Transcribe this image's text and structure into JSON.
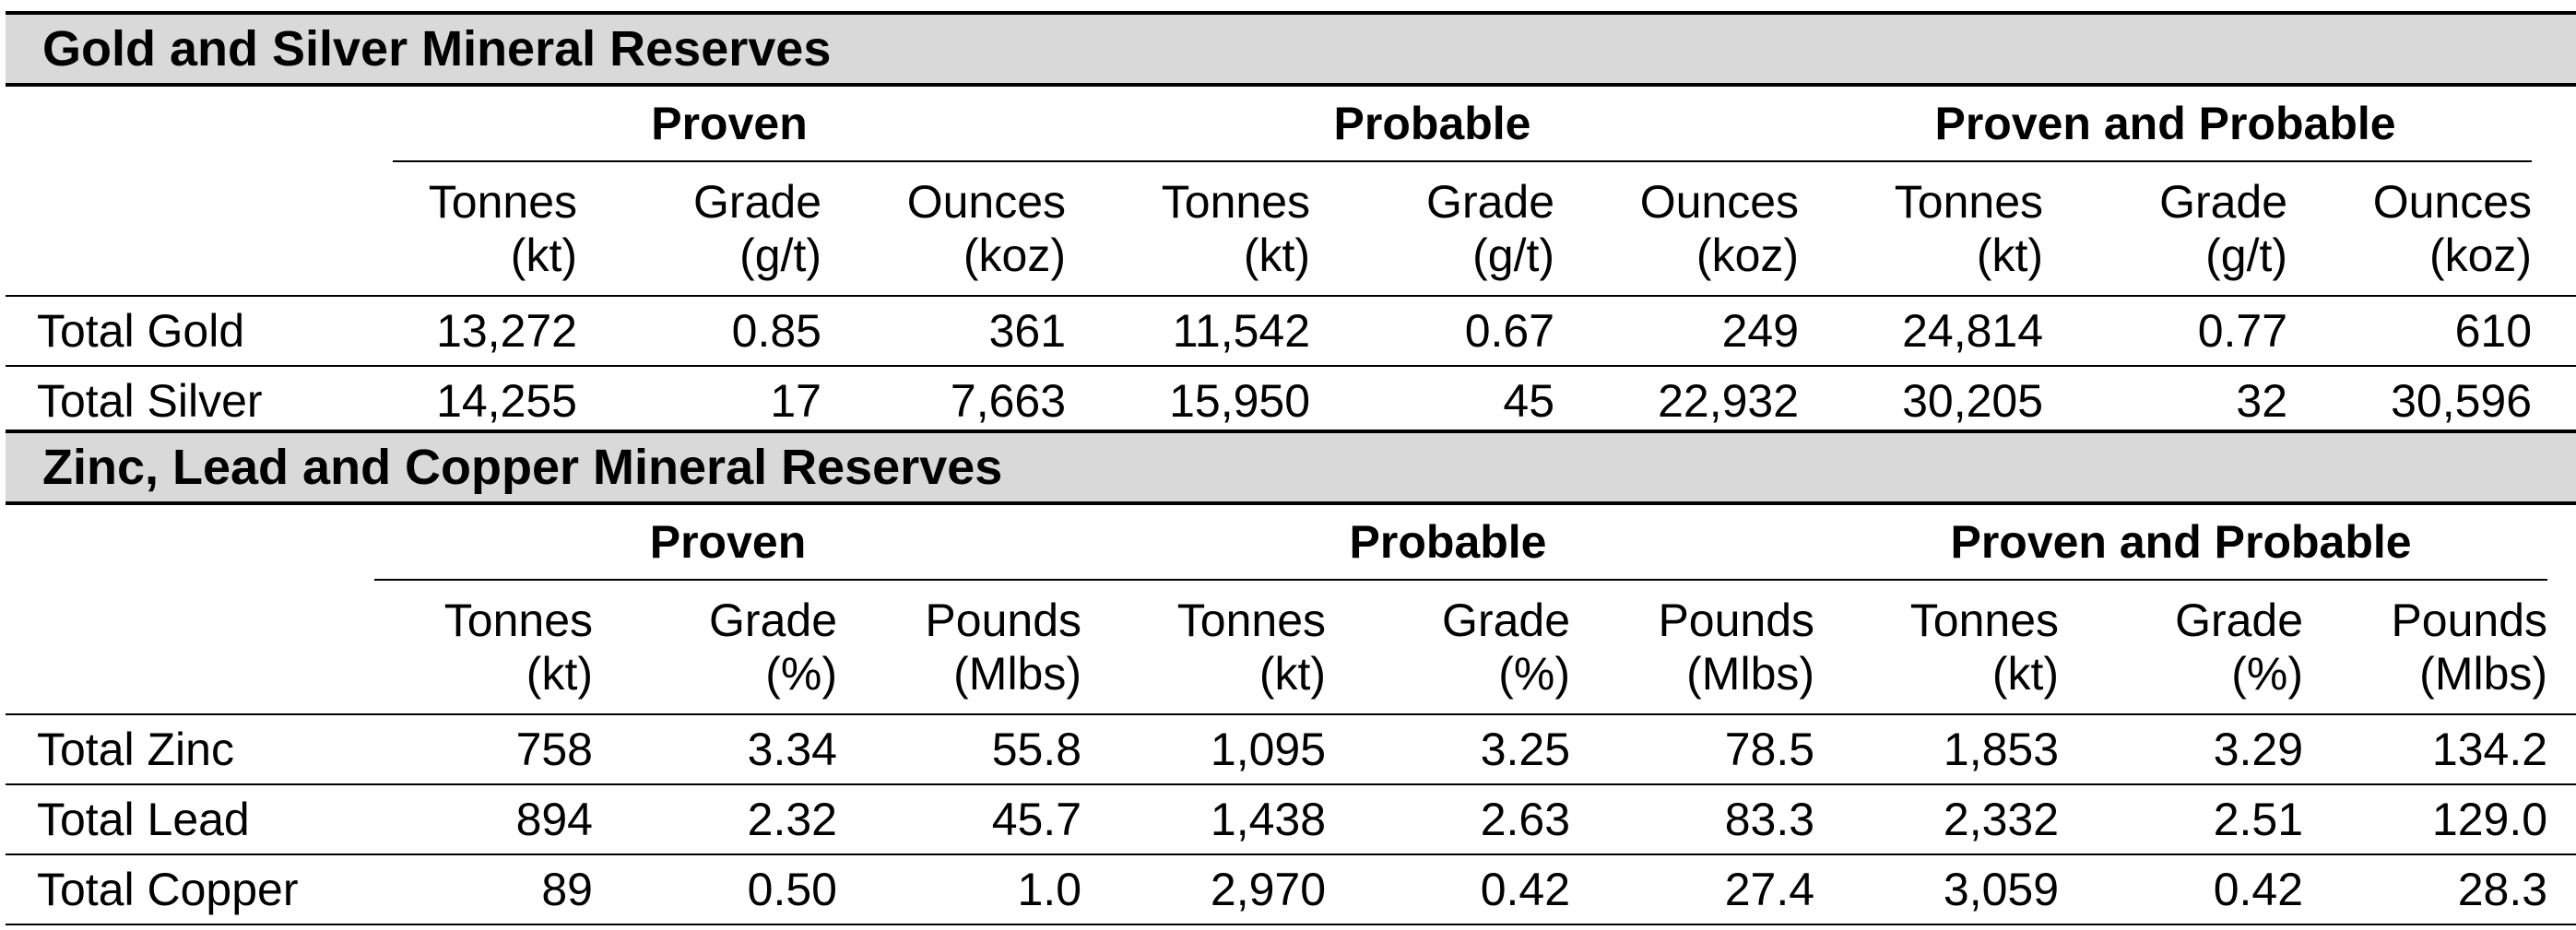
{
  "gold_silver": {
    "title": "Gold and Silver Mineral Reserves",
    "groups": [
      "Proven",
      "Probable",
      "Proven and Probable"
    ],
    "units_line1": [
      "Tonnes",
      "Grade",
      "Ounces",
      "Tonnes",
      "Grade",
      "Ounces",
      "Tonnes",
      "Grade",
      "Ounces"
    ],
    "units_line2": [
      "(kt)",
      "(g/t)",
      "(koz)",
      "(kt)",
      "(g/t)",
      "(koz)",
      "(kt)",
      "(g/t)",
      "(koz)"
    ],
    "rows": [
      {
        "label": "Total Gold",
        "values": [
          "13,272",
          "0.85",
          "361",
          "11,542",
          "0.67",
          "249",
          "24,814",
          "0.77",
          "610"
        ]
      },
      {
        "label": "Total Silver",
        "values": [
          "14,255",
          "17",
          "7,663",
          "15,950",
          "45",
          "22,932",
          "30,205",
          "32",
          "30,596"
        ]
      }
    ]
  },
  "zinc_lead_copper": {
    "title": "Zinc, Lead and Copper Mineral Reserves",
    "groups": [
      "Proven",
      "Probable",
      "Proven and Probable"
    ],
    "units_line1": [
      "Tonnes",
      "Grade",
      "Pounds",
      "Tonnes",
      "Grade",
      "Pounds",
      "Tonnes",
      "Grade",
      "Pounds"
    ],
    "units_line2": [
      "(kt)",
      "(%)",
      "(Mlbs)",
      "(kt)",
      "(%)",
      "(Mlbs)",
      "(kt)",
      "(%)",
      "(Mlbs)"
    ],
    "rows": [
      {
        "label": "Total Zinc",
        "values": [
          "758",
          "3.34",
          "55.8",
          "1,095",
          "3.25",
          "78.5",
          "1,853",
          "3.29",
          "134.2"
        ]
      },
      {
        "label": "Total Lead",
        "values": [
          "894",
          "2.32",
          "45.7",
          "1,438",
          "2.63",
          "83.3",
          "2,332",
          "2.51",
          "129.0"
        ]
      },
      {
        "label": "Total Copper",
        "values": [
          "89",
          "0.50",
          "1.0",
          "2,970",
          "0.42",
          "27.4",
          "3,059",
          "0.42",
          "28.3"
        ]
      }
    ]
  }
}
